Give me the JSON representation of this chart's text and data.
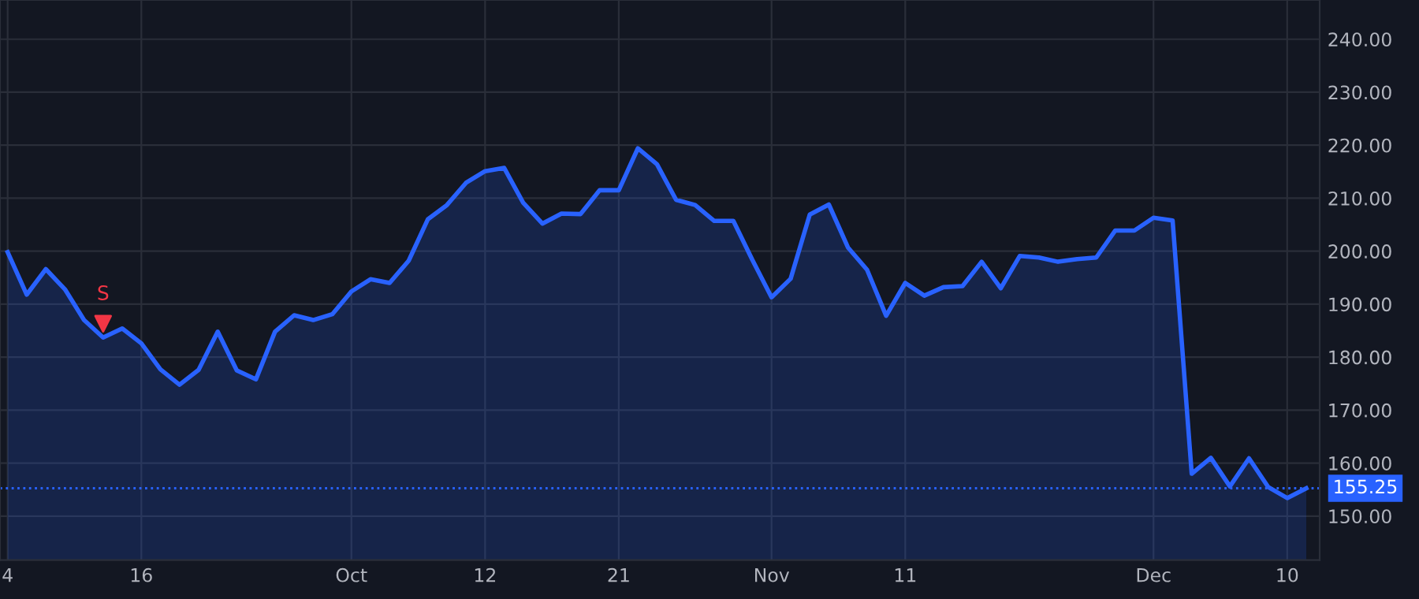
{
  "chart_data": {
    "type": "area",
    "categories": [
      "4",
      null,
      null,
      null,
      null,
      null,
      null,
      "16",
      null,
      null,
      null,
      null,
      null,
      null,
      null,
      null,
      null,
      null,
      "Oct",
      null,
      null,
      null,
      null,
      null,
      null,
      "12",
      null,
      null,
      null,
      null,
      null,
      null,
      "21",
      null,
      null,
      null,
      null,
      null,
      null,
      null,
      "Nov",
      null,
      null,
      null,
      null,
      null,
      null,
      "11",
      null,
      null,
      null,
      null,
      null,
      null,
      null,
      null,
      null,
      null,
      null,
      null,
      "Dec",
      null,
      null,
      null,
      null,
      null,
      null,
      "10",
      null
    ],
    "series": [
      {
        "color": "#2962ff",
        "values": [
          199.8,
          191.8,
          196.6,
          192.8,
          187.0,
          183.7,
          185.4,
          182.6,
          177.7,
          174.8,
          177.6,
          184.8,
          177.5,
          175.8,
          184.8,
          187.9,
          187.0,
          188.1,
          192.4,
          194.7,
          194.0,
          198.2,
          206.0,
          208.7,
          212.9,
          215.1,
          215.7,
          209.1,
          205.2,
          207.1,
          207.0,
          211.5,
          211.5,
          219.4,
          216.4,
          209.7,
          208.7,
          205.7,
          205.7,
          198.3,
          191.3,
          194.8,
          206.9,
          208.8,
          200.7,
          196.5,
          187.8,
          194.0,
          191.6,
          193.2,
          193.4,
          198.0,
          193.0,
          199.1,
          198.8,
          198.0,
          198.5,
          198.8,
          203.9,
          203.9,
          206.3,
          205.8,
          158.0,
          161.0,
          155.6,
          160.9,
          155.5,
          153.4,
          155.25
        ]
      },
      {
        "type": "scatter",
        "name": "S",
        "color": "#f23645",
        "marker": "triangle",
        "values": [
          null,
          null,
          null,
          null,
          null,
          186.3,
          null,
          null,
          null,
          null,
          null,
          null,
          null,
          null,
          null,
          null,
          null,
          null,
          null,
          null,
          null,
          null,
          null,
          null,
          null,
          null,
          null,
          null,
          null,
          null,
          null,
          null,
          null,
          null,
          null,
          null,
          null,
          null,
          null,
          null,
          null,
          null,
          null,
          null,
          null,
          null,
          null,
          null,
          null,
          null,
          null,
          null,
          null,
          null,
          null,
          null,
          null,
          null,
          null,
          null,
          null,
          null,
          null,
          null,
          null,
          null,
          null,
          null,
          null
        ]
      }
    ],
    "ylim": [
      141.7,
      247.4
    ],
    "yticks": [
      {
        "value": 150,
        "label": "150.00"
      },
      {
        "value": 160,
        "label": "160.00"
      },
      {
        "value": 170,
        "label": "170.00"
      },
      {
        "value": 180,
        "label": "180.00"
      },
      {
        "value": 190,
        "label": "190.00"
      },
      {
        "value": 200,
        "label": "200.00"
      },
      {
        "value": 210,
        "label": "210.00"
      },
      {
        "value": 220,
        "label": "220.00"
      },
      {
        "value": 230,
        "label": "230.00"
      },
      {
        "value": 240,
        "label": "240.00"
      }
    ],
    "ref_lines": [
      {
        "axis": "y",
        "value": 155.25,
        "label": "155.25",
        "color": "#2962ff",
        "line_style": "dotted"
      }
    ],
    "grid": true,
    "legend": false
  }
}
